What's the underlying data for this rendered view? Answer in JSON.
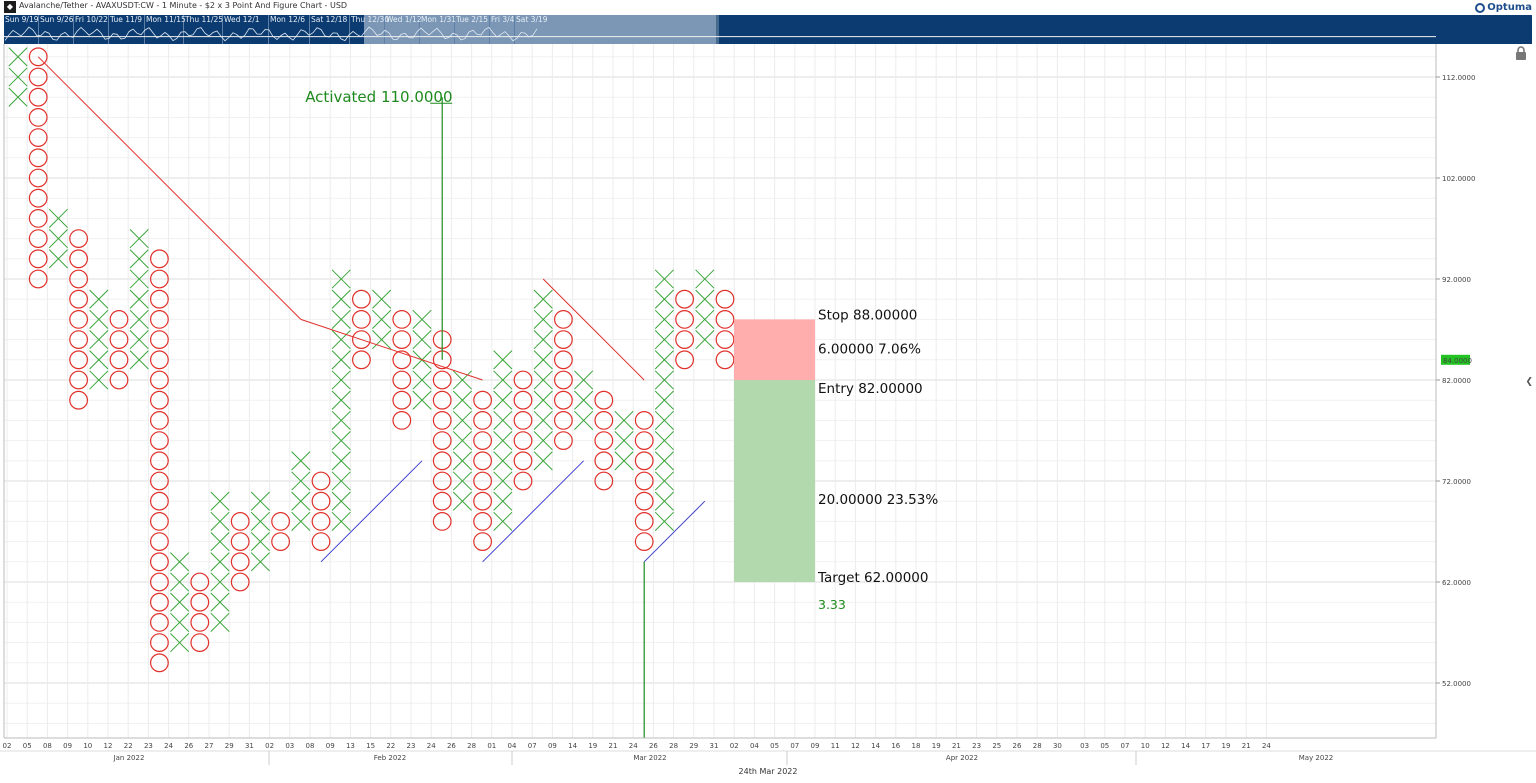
{
  "window": {
    "title": "Avalanche/Tether - AVAXUSDT:CW - 1 Minute - $2 x 3 Point And Figure Chart - USD",
    "brand": "Optuma"
  },
  "navigator": {
    "dates": [
      "Sun 9/19",
      "Sun 9/26",
      "Fri 10/22",
      "Tue 11/9",
      "Mon 11/15",
      "Thu 11/25",
      "Wed 12/1",
      "Mon 12/6",
      "Sat 12/18",
      "Thu 12/30",
      "Wed 1/12",
      "Mon 1/31",
      "Tue 2/15",
      "Fri 3/4",
      "Sat 3/19"
    ]
  },
  "chart_data": {
    "type": "point-and-figure",
    "box_size": 2,
    "reversal": 3,
    "y_axis": {
      "range": [
        46,
        116
      ],
      "ticks": [
        "112.0000",
        "102.0000",
        "92.0000",
        "82.0000",
        "72.0000",
        "62.0000",
        "52.0000"
      ]
    },
    "last_price": "84.0000",
    "x_axis": {
      "day_labels": [
        "02",
        "05",
        "08",
        "09",
        "10",
        "12",
        "22",
        "23",
        "24",
        "26",
        "27",
        "29",
        "31",
        "02",
        "03",
        "08",
        "09",
        "13",
        "15",
        "22",
        "23",
        "24",
        "26",
        "28",
        "01",
        "04",
        "07",
        "09",
        "14",
        "19",
        "21",
        "24",
        "26",
        "28",
        "29",
        "31",
        "02",
        "04",
        "05",
        "07",
        "09",
        "11",
        "12",
        "14",
        "16",
        "18",
        "19",
        "21",
        "23",
        "25",
        "26",
        "28",
        "30",
        "03",
        "05",
        "07",
        "10",
        "12",
        "14",
        "17",
        "19",
        "21",
        "24"
      ],
      "month_labels": [
        "Jan 2022",
        "Feb 2022",
        "Mar 2022",
        "Apr 2022",
        "May 2022"
      ],
      "current_date": "24th Mar 2022"
    },
    "columns": [
      {
        "type": "X",
        "low": 110,
        "high": 114
      },
      {
        "type": "O",
        "low": 92,
        "high": 114
      },
      {
        "type": "X",
        "low": 94,
        "high": 98
      },
      {
        "type": "O",
        "low": 80,
        "high": 96
      },
      {
        "type": "X",
        "low": 82,
        "high": 90
      },
      {
        "type": "O",
        "low": 82,
        "high": 88
      },
      {
        "type": "X",
        "low": 84,
        "high": 96
      },
      {
        "type": "O",
        "low": 54,
        "high": 94
      },
      {
        "type": "X",
        "low": 56,
        "high": 64
      },
      {
        "type": "O",
        "low": 56,
        "high": 62
      },
      {
        "type": "X",
        "low": 58,
        "high": 70
      },
      {
        "type": "O",
        "low": 62,
        "high": 68
      },
      {
        "type": "X",
        "low": 64,
        "high": 70
      },
      {
        "type": "O",
        "low": 66,
        "high": 68
      },
      {
        "type": "X",
        "low": 68,
        "high": 74
      },
      {
        "type": "O",
        "low": 66,
        "high": 72
      },
      {
        "type": "X",
        "low": 68,
        "high": 92
      },
      {
        "type": "O",
        "low": 84,
        "high": 90
      },
      {
        "type": "X",
        "low": 86,
        "high": 90
      },
      {
        "type": "O",
        "low": 78,
        "high": 88
      },
      {
        "type": "X",
        "low": 80,
        "high": 88
      },
      {
        "type": "O",
        "low": 68,
        "high": 86
      },
      {
        "type": "X",
        "low": 70,
        "high": 82
      },
      {
        "type": "O",
        "low": 66,
        "high": 80
      },
      {
        "type": "X",
        "low": 68,
        "high": 84
      },
      {
        "type": "O",
        "low": 72,
        "high": 82
      },
      {
        "type": "X",
        "low": 74,
        "high": 90
      },
      {
        "type": "O",
        "low": 76,
        "high": 88
      },
      {
        "type": "X",
        "low": 78,
        "high": 82
      },
      {
        "type": "O",
        "low": 72,
        "high": 80
      },
      {
        "type": "X",
        "low": 74,
        "high": 78
      },
      {
        "type": "O",
        "low": 66,
        "high": 78
      },
      {
        "type": "X",
        "low": 68,
        "high": 92
      },
      {
        "type": "O",
        "low": 84,
        "high": 90
      },
      {
        "type": "X",
        "low": 86,
        "high": 92
      },
      {
        "type": "O",
        "low": 84,
        "high": 90
      }
    ],
    "trend_lines": [
      {
        "color": "#e0302a",
        "from": {
          "col": 1,
          "price": 114
        },
        "to": {
          "col": 14,
          "price": 88
        }
      },
      {
        "color": "#e0302a",
        "from": {
          "col": 14,
          "price": 88
        },
        "to": {
          "col": 23,
          "price": 82
        }
      },
      {
        "color": "#e0302a",
        "from": {
          "col": 26,
          "price": 92
        },
        "to": {
          "col": 31,
          "price": 82
        }
      },
      {
        "color": "#3f3fd4",
        "from": {
          "col": 15,
          "price": 64
        },
        "to": {
          "col": 20,
          "price": 74
        }
      },
      {
        "color": "#3f3fd4",
        "from": {
          "col": 23,
          "price": 64
        },
        "to": {
          "col": 28,
          "price": 74
        }
      },
      {
        "color": "#3f3fd4",
        "from": {
          "col": 31,
          "price": 64
        },
        "to": {
          "col": 34,
          "price": 70
        }
      }
    ],
    "signals": [
      {
        "label": "Activated",
        "value": "110.0000",
        "price": 110,
        "color": "#1e8a1e"
      }
    ],
    "trade_setup": {
      "stop": {
        "label": "Stop",
        "value": "88.00000",
        "price": 88
      },
      "risk": {
        "points": "6.00000",
        "percent": "7.06%"
      },
      "entry": {
        "label": "Entry",
        "value": "82.00000",
        "price": 82
      },
      "reward": {
        "points": "20.00000",
        "percent": "23.53%"
      },
      "target": {
        "label": "Target",
        "value": "62.00000",
        "price": 62
      },
      "ratio": "3.33",
      "risk_color": "#ffadad",
      "reward_color": "#b2d9ad"
    },
    "colors": {
      "x": "#3aa53a",
      "o": "#e0302a",
      "grid": "#dcdcdc",
      "last_price_bg": "#22c322"
    }
  }
}
